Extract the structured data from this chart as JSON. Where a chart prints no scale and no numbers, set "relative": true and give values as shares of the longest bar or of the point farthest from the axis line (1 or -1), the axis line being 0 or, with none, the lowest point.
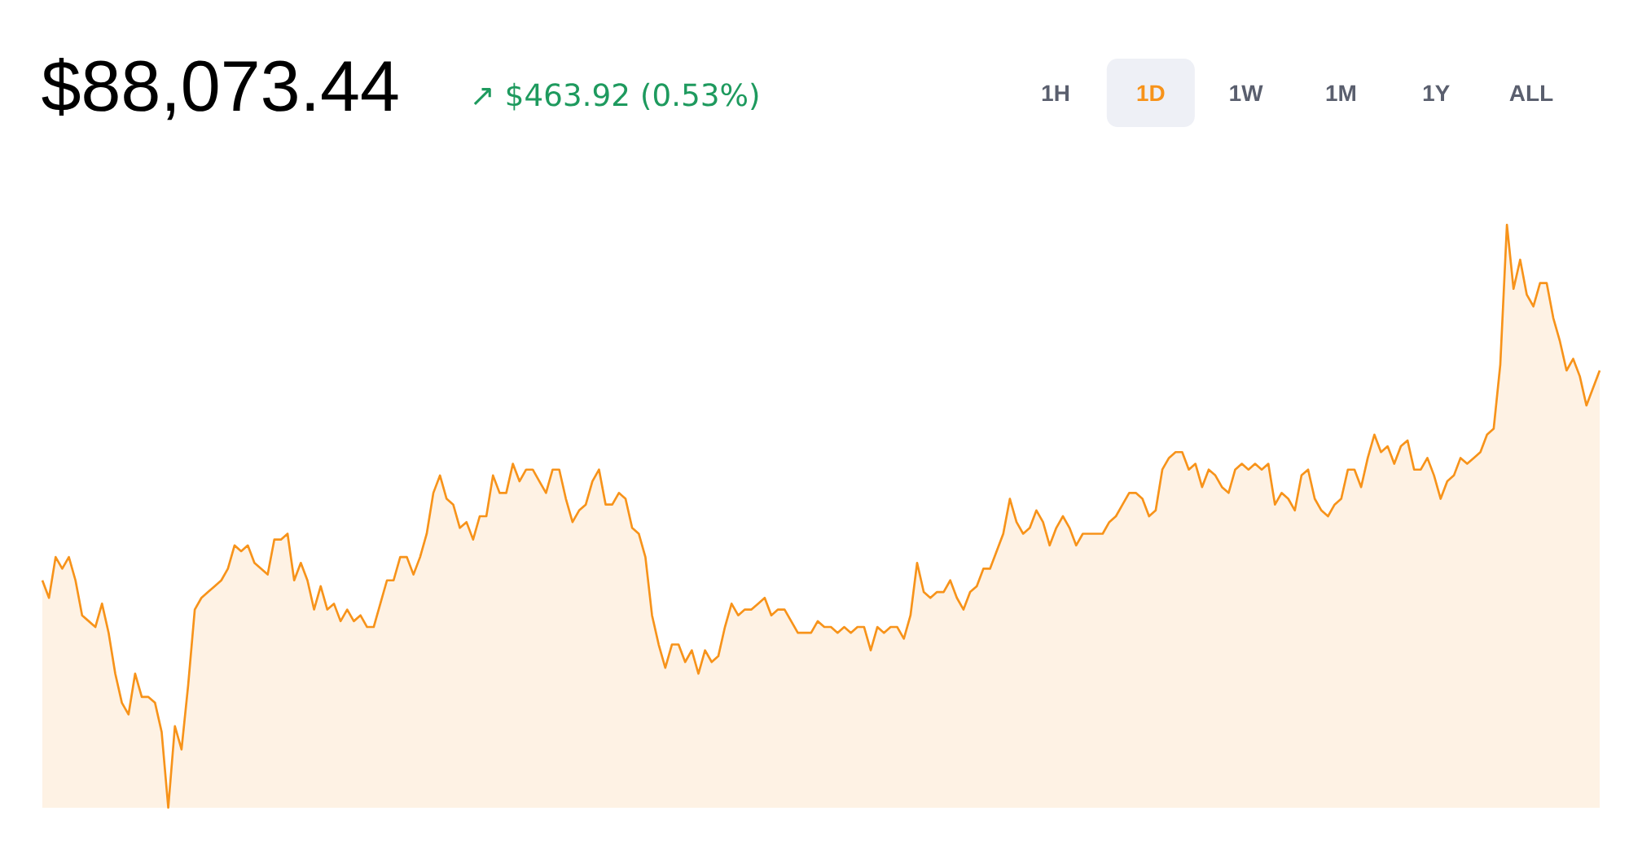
{
  "chart_data": {
    "type": "area",
    "title": "$88,073.44",
    "subtitle": "↗ $463.92 (0.53%)",
    "annotations": [
      "1H",
      "1D",
      "1W",
      "1M",
      "1Y",
      "ALL"
    ],
    "relative": true,
    "color": "#f7931a",
    "categories": [
      null,
      null,
      null,
      null,
      null,
      null,
      null,
      null,
      null,
      null,
      null,
      null,
      null,
      null,
      null,
      null,
      null,
      null,
      null,
      null,
      null,
      null,
      null,
      null,
      null,
      null,
      null,
      null,
      null,
      null,
      null,
      null,
      null,
      null,
      null,
      null,
      null,
      null,
      null,
      null,
      null,
      null,
      null,
      null,
      null,
      null,
      null,
      null,
      null,
      null,
      null,
      null,
      null,
      null,
      null,
      null,
      null,
      null,
      null,
      null,
      null,
      null,
      null,
      null,
      null,
      null,
      null,
      null,
      null,
      null,
      null,
      null,
      null,
      null,
      null,
      null,
      null,
      null,
      null,
      null,
      null,
      null,
      null,
      null,
      null,
      null,
      null,
      null,
      null,
      null,
      null,
      null,
      null,
      null,
      null,
      null,
      null,
      null,
      null,
      null,
      null,
      null,
      null,
      null,
      null,
      null,
      null,
      null,
      null,
      null,
      null,
      null,
      null,
      null,
      null,
      null,
      null,
      null,
      null,
      null,
      null,
      null,
      null,
      null,
      null,
      null,
      null,
      null,
      null,
      null,
      null,
      null,
      null,
      null,
      null,
      null,
      null,
      null,
      null,
      null,
      null,
      null,
      null,
      null,
      null,
      null,
      null,
      null,
      null,
      null,
      null,
      null,
      null,
      null,
      null,
      null,
      null,
      null,
      null,
      null,
      null,
      null,
      null,
      null,
      null,
      null,
      null,
      null,
      null,
      null,
      null,
      null,
      null,
      null,
      null,
      null,
      null,
      null,
      null,
      null,
      null,
      null,
      null,
      null,
      null,
      null,
      null,
      null,
      null,
      null,
      null,
      null,
      null,
      null,
      null,
      null,
      null,
      null,
      null,
      null,
      null,
      null,
      null,
      null,
      null,
      null,
      null,
      null,
      null,
      null,
      null,
      null,
      null,
      null,
      null,
      null,
      null,
      null,
      null,
      null,
      null,
      null,
      null,
      null,
      null,
      null,
      null,
      null,
      null,
      null,
      null,
      null,
      null,
      null,
      null,
      null
    ],
    "values": [
      0.39,
      0.36,
      0.43,
      0.41,
      0.43,
      0.39,
      0.33,
      0.32,
      0.31,
      0.35,
      0.3,
      0.23,
      0.18,
      0.16,
      0.23,
      0.19,
      0.19,
      0.18,
      0.13,
      0,
      0.14,
      0.1,
      0.21,
      0.34,
      0.36,
      0.37,
      0.38,
      0.39,
      0.41,
      0.45,
      0.44,
      0.45,
      0.42,
      0.41,
      0.4,
      0.46,
      0.46,
      0.47,
      0.39,
      0.42,
      0.39,
      0.34,
      0.38,
      0.34,
      0.35,
      0.32,
      0.34,
      0.32,
      0.33,
      0.31,
      0.31,
      0.35,
      0.39,
      0.39,
      0.43,
      0.43,
      0.4,
      0.43,
      0.47,
      0.54,
      0.57,
      0.53,
      0.52,
      0.48,
      0.49,
      0.46,
      0.5,
      0.5,
      0.57,
      0.54,
      0.54,
      0.59,
      0.56,
      0.58,
      0.58,
      0.56,
      0.54,
      0.58,
      0.58,
      0.53,
      0.49,
      0.51,
      0.52,
      0.56,
      0.58,
      0.52,
      0.52,
      0.54,
      0.53,
      0.48,
      0.47,
      0.43,
      0.33,
      0.28,
      0.24,
      0.28,
      0.28,
      0.25,
      0.27,
      0.23,
      0.27,
      0.25,
      0.26,
      0.31,
      0.35,
      0.33,
      0.34,
      0.34,
      0.35,
      0.36,
      0.33,
      0.34,
      0.34,
      0.32,
      0.3,
      0.3,
      0.3,
      0.32,
      0.31,
      0.31,
      0.3,
      0.31,
      0.3,
      0.31,
      0.31,
      0.27,
      0.31,
      0.3,
      0.31,
      0.31,
      0.29,
      0.33,
      0.42,
      0.37,
      0.36,
      0.37,
      0.37,
      0.39,
      0.36,
      0.34,
      0.37,
      0.38,
      0.41,
      0.41,
      0.44,
      0.47,
      0.53,
      0.49,
      0.47,
      0.48,
      0.51,
      0.49,
      0.45,
      0.48,
      0.5,
      0.48,
      0.45,
      0.47,
      0.47,
      0.47,
      0.47,
      0.49,
      0.5,
      0.52,
      0.54,
      0.54,
      0.53,
      0.5,
      0.51,
      0.58,
      0.6,
      0.61,
      0.61,
      0.58,
      0.59,
      0.55,
      0.58,
      0.57,
      0.55,
      0.54,
      0.58,
      0.59,
      0.58,
      0.59,
      0.58,
      0.59,
      0.52,
      0.54,
      0.53,
      0.51,
      0.57,
      0.58,
      0.53,
      0.51,
      0.5,
      0.52,
      0.53,
      0.58,
      0.58,
      0.55,
      0.6,
      0.64,
      0.61,
      0.62,
      0.59,
      0.62,
      0.63,
      0.58,
      0.58,
      0.6,
      0.57,
      0.53,
      0.56,
      0.57,
      0.6,
      0.59,
      0.6,
      0.61,
      0.64,
      0.65,
      0.76,
      1,
      0.89,
      0.94,
      0.88,
      0.86,
      0.9,
      0.9,
      0.84,
      0.8,
      0.75,
      0.77,
      0.74,
      0.69,
      0.72,
      0.75
    ]
  }
}
